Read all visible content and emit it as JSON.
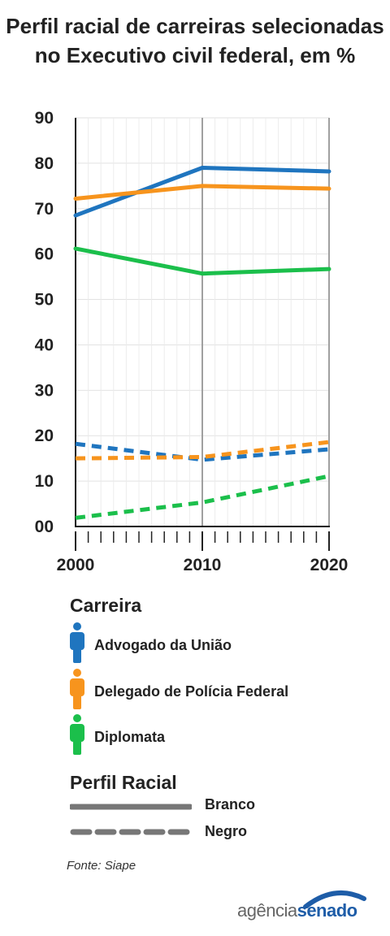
{
  "title": "Perfil racial de carreiras selecionadas no Executivo civil federal, em %",
  "chart_data": {
    "type": "line",
    "x": [
      2000,
      2010,
      2020
    ],
    "xticks": [
      "2000",
      "2010",
      "2020"
    ],
    "yticks": [
      "00",
      "10",
      "20",
      "30",
      "40",
      "50",
      "60",
      "70",
      "80",
      "90"
    ],
    "ylim": [
      0,
      90
    ],
    "xlim": [
      2000,
      2020
    ],
    "grid": true,
    "series": [
      {
        "career": "Advogado da União",
        "profile": "Branco",
        "color": "#1f75bf",
        "dashed": false,
        "values": [
          68.5,
          79.0,
          78.2
        ]
      },
      {
        "career": "Delegado de Polícia Federal",
        "profile": "Branco",
        "color": "#f7941d",
        "dashed": false,
        "values": [
          72.2,
          75.0,
          74.4
        ]
      },
      {
        "career": "Diplomata",
        "profile": "Branco",
        "color": "#1bbf4b",
        "dashed": false,
        "values": [
          61.2,
          55.7,
          56.7
        ]
      },
      {
        "career": "Advogado da União",
        "profile": "Negro",
        "color": "#1f75bf",
        "dashed": true,
        "values": [
          18.2,
          14.7,
          17.0
        ]
      },
      {
        "career": "Delegado de Polícia Federal",
        "profile": "Negro",
        "color": "#f7941d",
        "dashed": true,
        "values": [
          15.0,
          15.3,
          18.6
        ]
      },
      {
        "career": "Diplomata",
        "profile": "Negro",
        "color": "#1bbf4b",
        "dashed": true,
        "values": [
          1.9,
          5.3,
          11.1
        ]
      }
    ]
  },
  "legend": {
    "career_title": "Carreira",
    "careers": [
      {
        "label": "Advogado da União",
        "color": "#1f75bf",
        "icon": "person-icon"
      },
      {
        "label": "Delegado de Polícia Federal",
        "color": "#f7941d",
        "icon": "person-icon"
      },
      {
        "label": "Diplomata",
        "color": "#1bbf4b",
        "icon": "person-icon"
      }
    ],
    "profile_title": "Perfil Racial",
    "profiles": [
      {
        "label": "Branco"
      },
      {
        "label": "Negro"
      }
    ]
  },
  "source": "Fonte: Siape",
  "brand": {
    "part1": "agência",
    "part2": "senado"
  }
}
